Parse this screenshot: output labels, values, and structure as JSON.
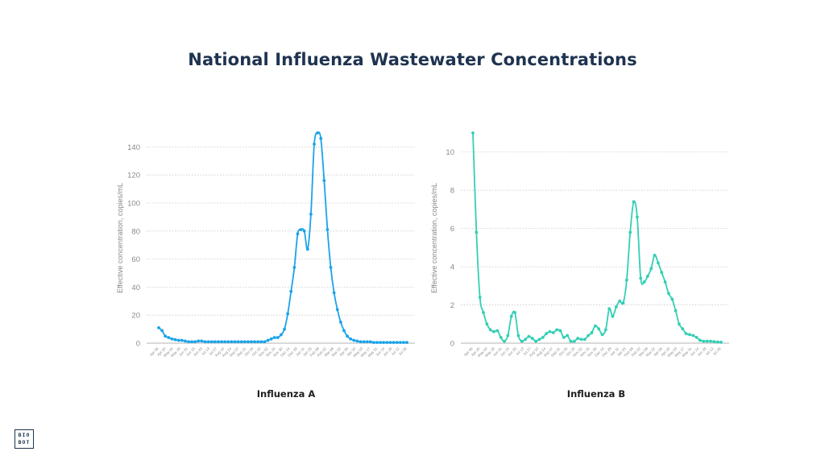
{
  "page": {
    "title": "National Influenza Wastewater Concentrations"
  },
  "logo": {
    "line1": "BIO",
    "line2": "BOT"
  },
  "chart_data": [
    {
      "type": "line",
      "caption": "Influenza A",
      "ylabel": "Effective concentration, copies/mL",
      "ylim": [
        0,
        150
      ],
      "yticks": [
        0,
        20,
        40,
        60,
        80,
        100,
        120,
        140
      ],
      "grid": true,
      "color": "#1aa3e8",
      "x_tick_labels": [
        "Apr 06",
        "Apr 20",
        "May 04",
        "May 18",
        "Jun 01",
        "Jun 15",
        "Jun 29",
        "Jul 13",
        "Jul 27",
        "Aug 10",
        "Aug 24",
        "Sep 07",
        "Sep 21",
        "Oct 05",
        "Oct 19",
        "Nov 02",
        "Nov 16",
        "Nov 30",
        "Dec 14",
        "Dec 28",
        "Jan 11",
        "Jan 25",
        "Feb 08",
        "Feb 22",
        "Mar 08",
        "Mar 22",
        "Apr 05",
        "Apr 19",
        "May 03",
        "May 17",
        "May 31",
        "Jun 14",
        "Jun 28",
        "Jul 12",
        "Jul 26"
      ],
      "values": [
        11,
        9,
        5,
        4,
        3,
        2.5,
        2,
        2,
        1.5,
        1,
        1,
        1,
        1.5,
        1.5,
        1,
        1,
        1,
        1,
        1,
        1,
        1,
        1,
        1,
        1,
        1,
        1,
        1,
        1,
        1,
        1,
        1,
        1,
        1,
        2,
        3,
        4,
        4,
        6,
        10,
        21,
        37,
        54,
        78,
        81,
        80,
        67,
        92,
        142,
        150,
        146,
        116,
        81,
        54,
        36,
        24,
        15,
        9,
        5,
        3,
        2,
        1.5,
        1,
        1,
        1,
        1,
        0.5,
        0.5,
        0.5,
        0.5,
        0.5,
        0.5,
        0.5,
        0.5,
        0.5,
        0.5,
        0.5
      ]
    },
    {
      "type": "line",
      "caption": "Influenza B",
      "ylabel": "Effective concentration, copies/mL",
      "ylim": [
        0,
        11
      ],
      "yticks": [
        0,
        2,
        4,
        6,
        8,
        10
      ],
      "grid": true,
      "color": "#33cfb4",
      "x_tick_labels": [
        "Apr 06",
        "Apr 20",
        "May 04",
        "May 18",
        "Jun 01",
        "Jun 15",
        "Jun 29",
        "Jul 13",
        "Jul 27",
        "Aug 10",
        "Aug 24",
        "Sep 07",
        "Sep 21",
        "Oct 05",
        "Oct 19",
        "Nov 02",
        "Nov 16",
        "Nov 30",
        "Dec 14",
        "Dec 28",
        "Jan 11",
        "Jan 25",
        "Feb 08",
        "Feb 22",
        "Mar 08",
        "Mar 22",
        "Apr 05",
        "Apr 19",
        "May 03",
        "May 17",
        "May 31",
        "Jun 14",
        "Jun 28",
        "Jul 12",
        "Jul 26"
      ],
      "values": [
        11,
        5.8,
        2.4,
        1.6,
        1.0,
        0.7,
        0.6,
        0.65,
        0.3,
        0.1,
        0.4,
        1.4,
        1.6,
        0.4,
        0.1,
        0.2,
        0.35,
        0.25,
        0.1,
        0.2,
        0.3,
        0.5,
        0.6,
        0.55,
        0.7,
        0.65,
        0.3,
        0.4,
        0.1,
        0.1,
        0.25,
        0.2,
        0.2,
        0.4,
        0.55,
        0.9,
        0.75,
        0.45,
        0.7,
        1.8,
        1.4,
        1.9,
        2.2,
        2.1,
        3.3,
        5.8,
        7.4,
        6.6,
        3.4,
        3.2,
        3.5,
        3.9,
        4.6,
        4.2,
        3.7,
        3.2,
        2.6,
        2.3,
        1.7,
        1.0,
        0.75,
        0.5,
        0.45,
        0.4,
        0.3,
        0.15,
        0.1,
        0.1,
        0.1,
        0.08,
        0.06,
        0.05
      ]
    }
  ]
}
